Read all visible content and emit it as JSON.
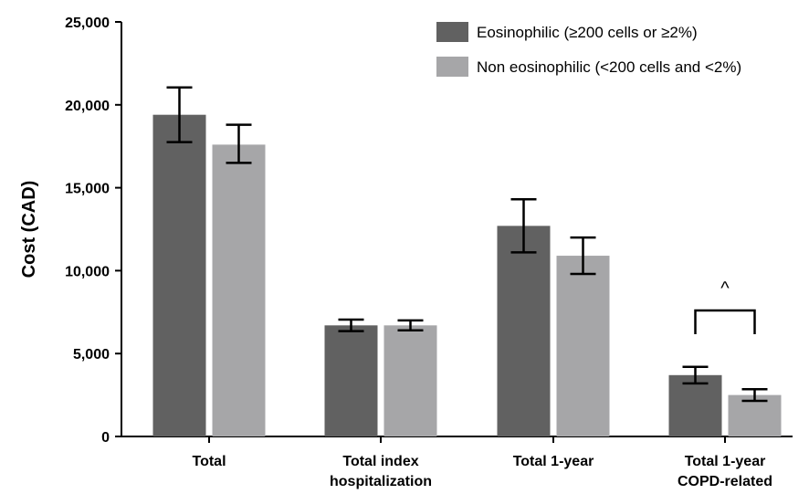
{
  "chart_data": {
    "type": "bar",
    "categories": [
      [
        "Total"
      ],
      [
        "Total index",
        "hospitalization"
      ],
      [
        "Total 1-year"
      ],
      [
        "Total 1-year",
        "COPD-related"
      ]
    ],
    "series": [
      {
        "name": "Eosinophilic (≥200 cells or ≥2%)",
        "color": "#616161",
        "values": [
          19400,
          6700,
          12700,
          3700
        ],
        "err_low": [
          17750,
          6350,
          11100,
          3200
        ],
        "err_high": [
          21050,
          7050,
          14300,
          4200
        ]
      },
      {
        "name": "Non eosinophilic (<200 cells and <2%)",
        "color": "#a6a6a8",
        "values": [
          17600,
          6700,
          10900,
          2500
        ],
        "err_low": [
          16500,
          6400,
          9800,
          2150
        ],
        "err_high": [
          18800,
          7000,
          12000,
          2850
        ]
      }
    ],
    "ylabel": "Cost (CAD)",
    "xlabel": "",
    "ylim": [
      0,
      25000
    ],
    "yticks": [
      0,
      5000,
      10000,
      15000,
      20000,
      25000
    ],
    "ytick_labels": [
      "0",
      "5,000",
      "10,000",
      "15,000",
      "20,000",
      "25,000"
    ],
    "legend_position": "top-right",
    "grid": false,
    "annotations": [
      {
        "text": "^",
        "category_index": 3
      }
    ]
  }
}
